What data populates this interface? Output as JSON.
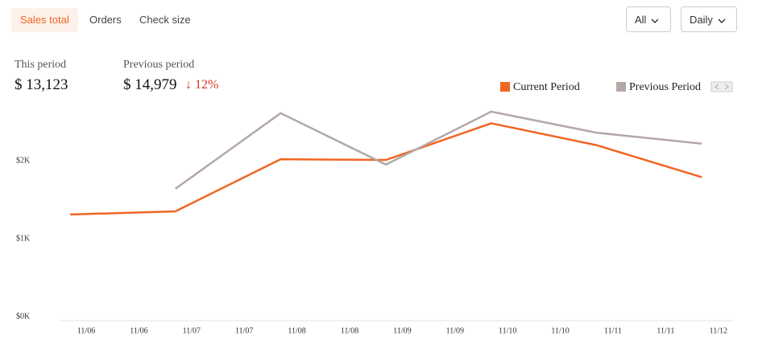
{
  "tabs": [
    "Sales total",
    "Orders",
    "Check size"
  ],
  "filters": [
    "All",
    "Daily"
  ],
  "stats": {
    "this_label": "This period",
    "this_value": "$ 13,123",
    "prev_label": "Previous period",
    "prev_value": "$ 14,979",
    "change": "↓ 12%"
  },
  "chart_data": {
    "type": "line",
    "x_labels": [
      "11/06",
      "11/06",
      "11/07",
      "11/07",
      "11/08",
      "11/08",
      "11/09",
      "11/09",
      "11/10",
      "11/10",
      "11/11",
      "11/11",
      "11/12"
    ],
    "series": [
      {
        "name": "Current Period",
        "color": "#f26522",
        "values": [
          1310,
          1350,
          2020,
          2010,
          2480,
          2200,
          1790
        ]
      },
      {
        "name": "Previous Period",
        "color": "#b3a8a6",
        "values": [
          null,
          1640,
          2610,
          1950,
          2630,
          2360,
          2220
        ]
      }
    ],
    "ylim": [
      0,
      3000
    ],
    "yticks": [
      {
        "value": 0,
        "label": "$0K"
      },
      {
        "value": 1000,
        "label": "$1K"
      },
      {
        "value": 2000,
        "label": "$2K"
      }
    ]
  }
}
